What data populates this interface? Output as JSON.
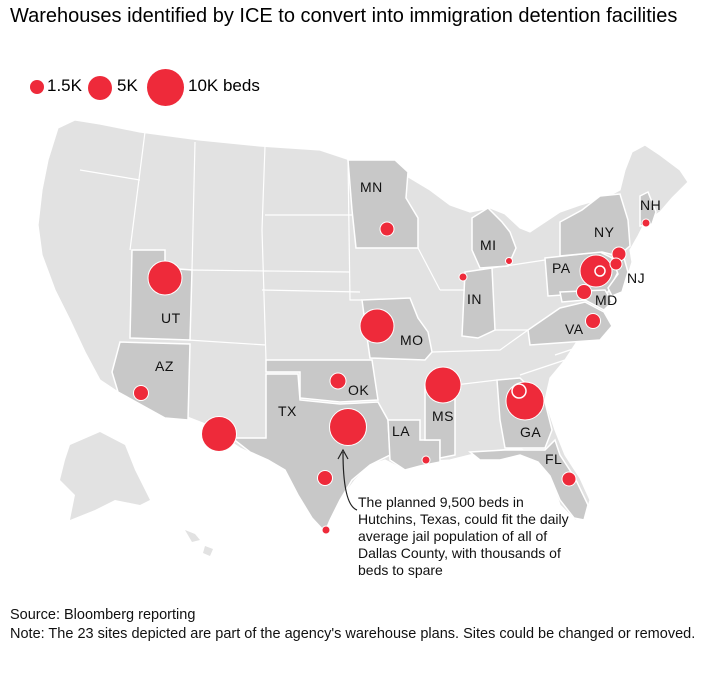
{
  "title": "Warehouses identified by ICE to convert into immigration detention facilities",
  "legend": {
    "items": [
      {
        "label": "1.5K",
        "beds": 1500
      },
      {
        "label": "5K",
        "beds": 5000
      },
      {
        "label": "10K beds",
        "beds": 10000
      }
    ]
  },
  "colors": {
    "site": "#ee2a3a",
    "highlighted_state": "#c8c8c8",
    "other_state": "#e2e2e2",
    "border": "#ffffff"
  },
  "state_labels": {
    "mn": "MN",
    "ut": "UT",
    "az": "AZ",
    "mo": "MO",
    "ok": "OK",
    "tx": "TX",
    "la": "LA",
    "ms": "MS",
    "ga": "GA",
    "fl": "FL",
    "in": "IN",
    "mi": "MI",
    "pa": "PA",
    "ny": "NY",
    "nj": "NJ",
    "md": "MD",
    "va": "VA",
    "nh": "NH"
  },
  "annotation": "The planned 9,500 beds in Hutchins, Texas, could fit the daily average jail population of all of Dallas County, with thousands of beds to spare",
  "source": "Source: Bloomberg reporting",
  "note": "Note: The 23 sites depicted are part of the agency's warehouse plans. Sites could be changed or removed."
}
